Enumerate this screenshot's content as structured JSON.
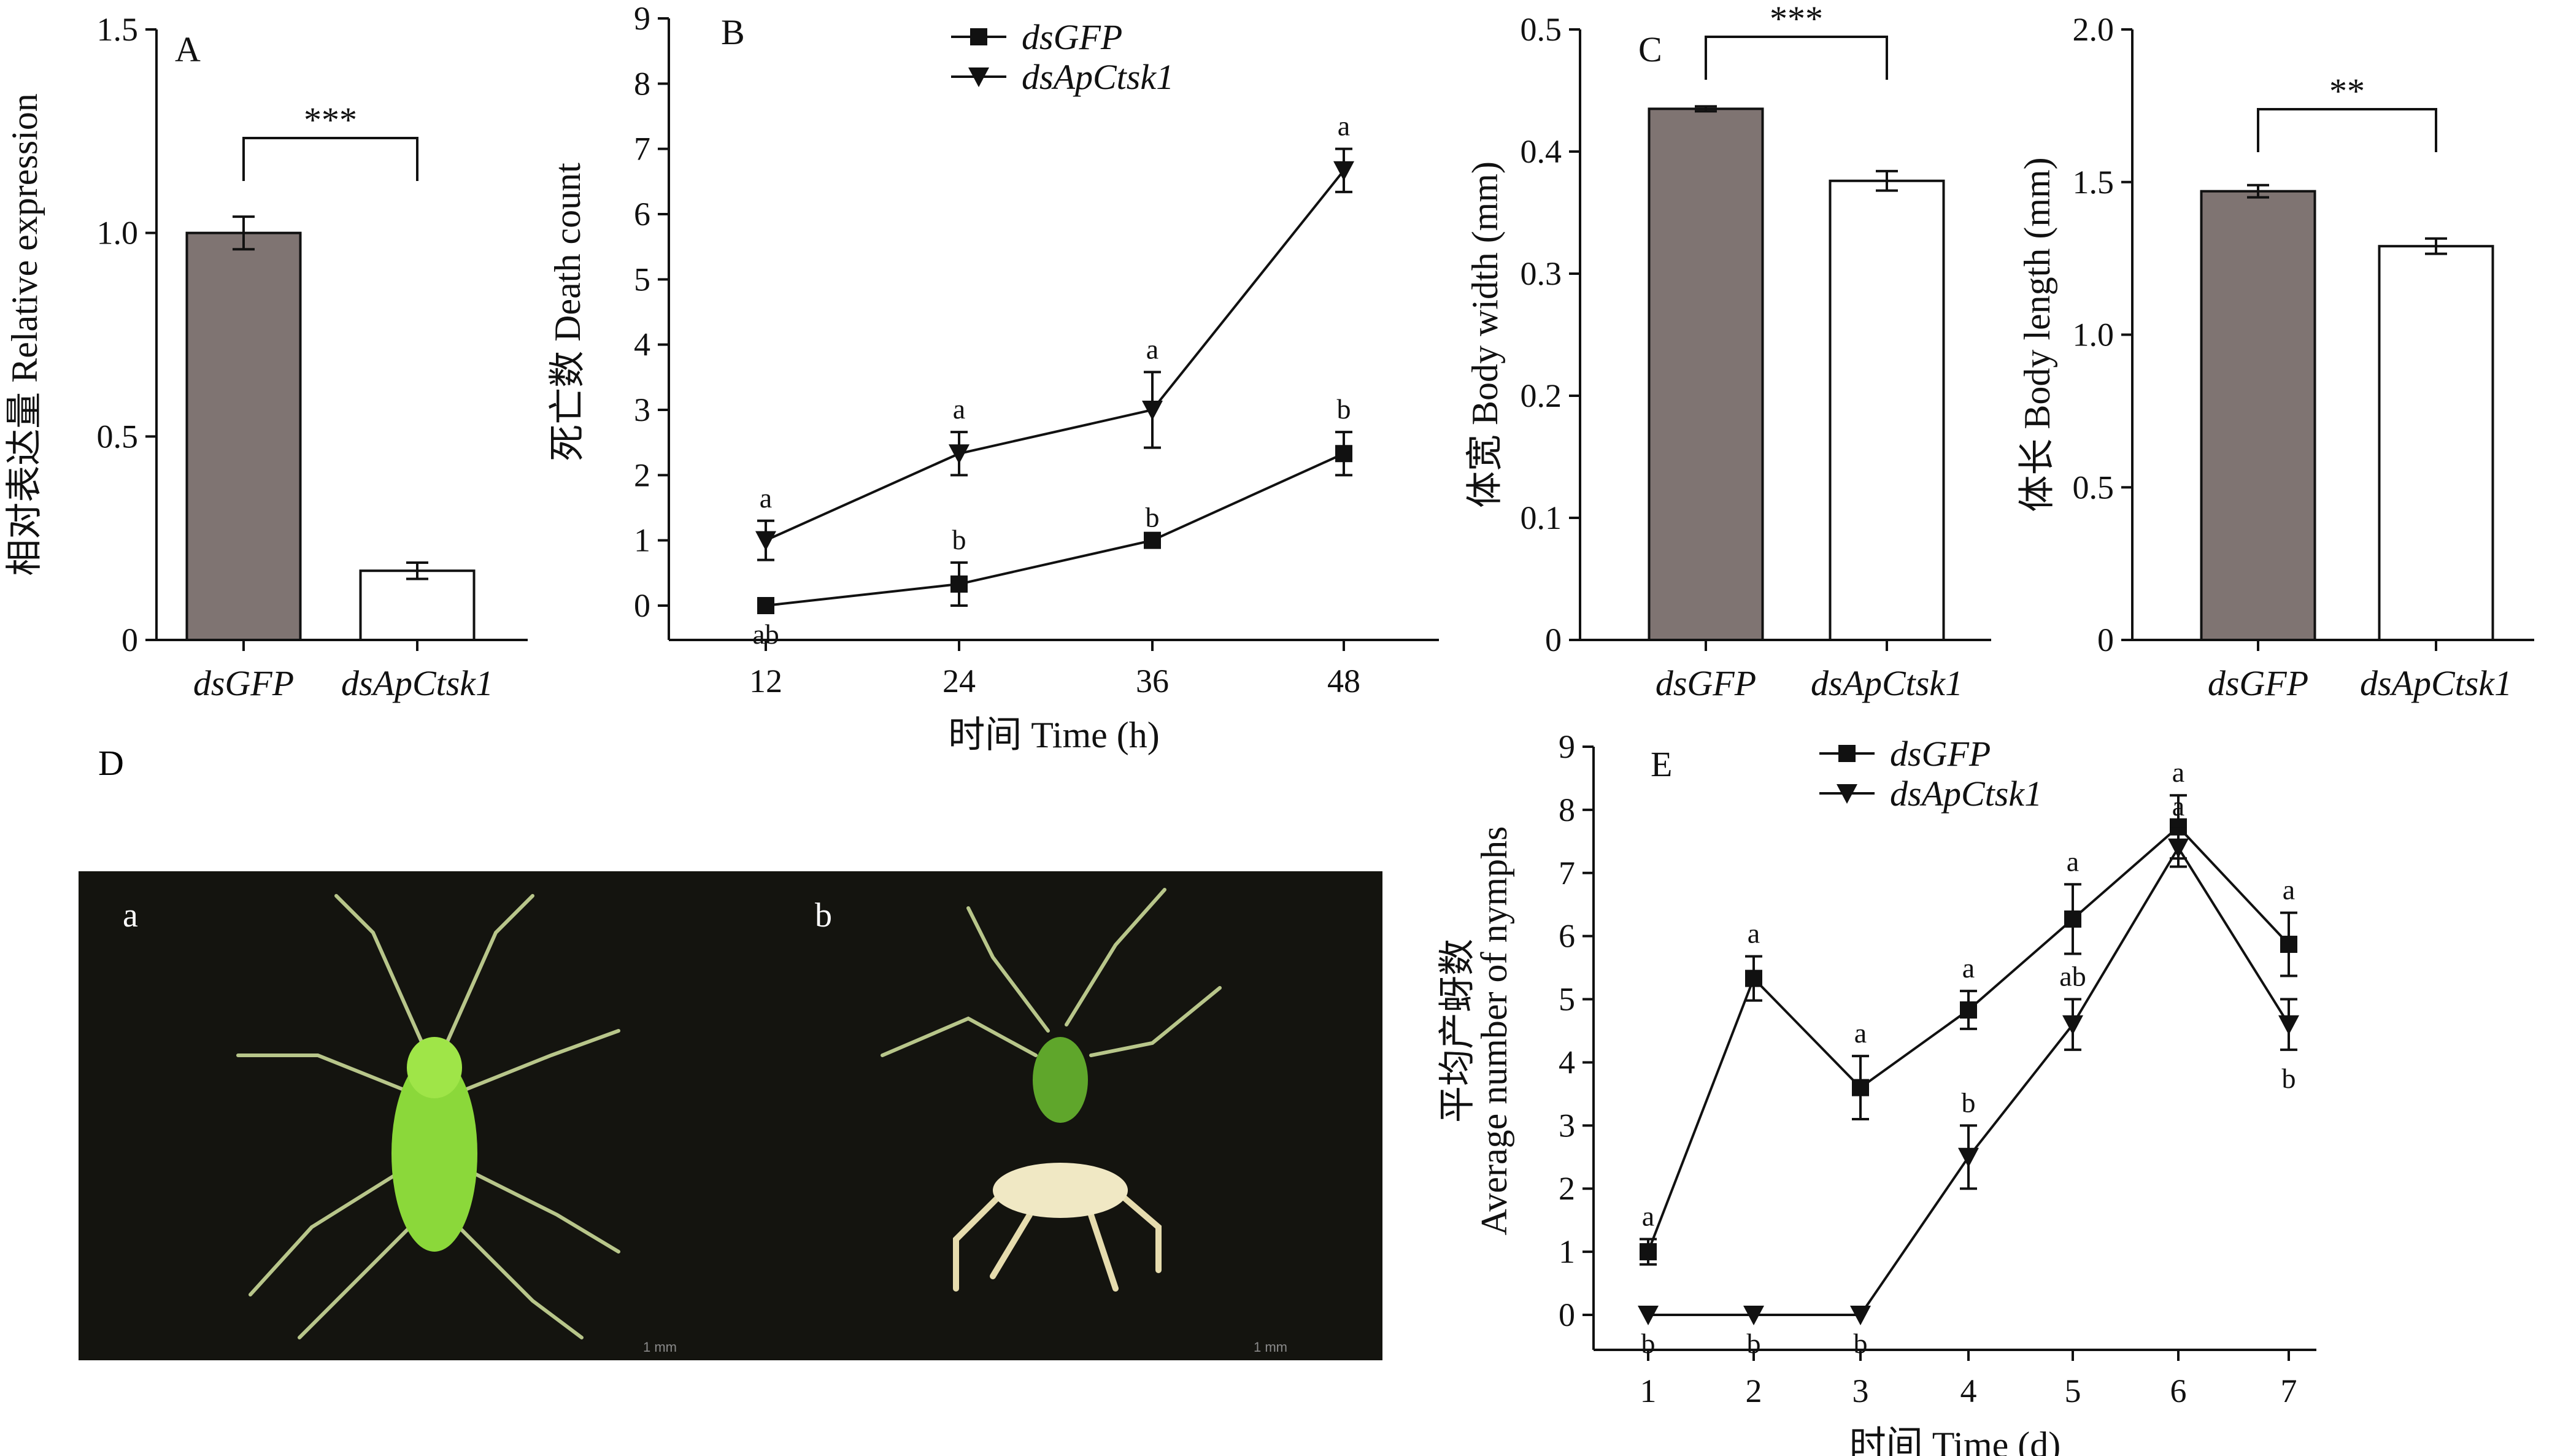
{
  "chart_data": [
    {
      "panel": "A",
      "type": "bar",
      "categories": [
        "dsGFP",
        "dsApCtsk1"
      ],
      "values": [
        1.0,
        0.17
      ],
      "errors": [
        0.04,
        0.02
      ],
      "bar_colors": [
        "#7f7472",
        "#ffffff"
      ],
      "ylabel": "相对表达量 Relative expression",
      "ylim": [
        0,
        1.5
      ],
      "yticks": [
        "0",
        "0.5",
        "1.0",
        "1.5"
      ],
      "yticks_values": [
        0,
        0.5,
        1.0,
        1.5
      ],
      "significance": "***"
    },
    {
      "panel": "B",
      "type": "line",
      "x": [
        12,
        24,
        36,
        48
      ],
      "xticks": [
        "12",
        "24",
        "36",
        "48"
      ],
      "xlabel": "时间 Time (h)",
      "ylabel": "死亡数 Death count",
      "ylim": [
        0,
        9
      ],
      "yticks": [
        "0",
        "1",
        "2",
        "3",
        "4",
        "5",
        "6",
        "7",
        "8",
        "9"
      ],
      "series": [
        {
          "name": "dsGFP",
          "marker": "square",
          "values": [
            0,
            0.33,
            1.0,
            2.33
          ],
          "errors": [
            0,
            0.33,
            0,
            0.33
          ],
          "letters": [
            "ab",
            "b",
            "b",
            "b"
          ]
        },
        {
          "name": "dsApCtsk1",
          "marker": "triangle-down",
          "values": [
            1.0,
            2.33,
            3.0,
            6.67
          ],
          "errors": [
            0.3,
            0.33,
            0.58,
            0.33
          ],
          "letters": [
            "a",
            "a",
            "a",
            "a"
          ]
        }
      ]
    },
    {
      "panel": "C",
      "type": "bar",
      "categories": [
        "dsGFP",
        "dsApCtsk1"
      ],
      "values": [
        0.435,
        0.376
      ],
      "errors": [
        0.002,
        0.008
      ],
      "bar_colors": [
        "#7f7472",
        "#ffffff"
      ],
      "ylabel": "体宽 Body width (mm)",
      "ylim": [
        0,
        0.5
      ],
      "yticks": [
        "0",
        "0.1",
        "0.2",
        "0.3",
        "0.4",
        "0.5"
      ],
      "yticks_values": [
        0,
        0.1,
        0.2,
        0.3,
        0.4,
        0.5
      ],
      "significance": "***"
    },
    {
      "panel": "",
      "type": "bar",
      "categories": [
        "dsGFP",
        "dsApCtsk1"
      ],
      "values": [
        1.47,
        1.29
      ],
      "errors": [
        0.02,
        0.025
      ],
      "bar_colors": [
        "#7f7472",
        "#ffffff"
      ],
      "ylabel": "体长 Body length (mm)",
      "ylim": [
        0,
        2.0
      ],
      "yticks": [
        "0",
        "0.5",
        "1.0",
        "1.5",
        "2.0"
      ],
      "yticks_values": [
        0,
        0.5,
        1.0,
        1.5,
        2.0
      ],
      "significance": "**"
    },
    {
      "panel": "E",
      "type": "line",
      "x": [
        1,
        2,
        3,
        4,
        5,
        6,
        7
      ],
      "xticks": [
        "1",
        "2",
        "3",
        "4",
        "5",
        "6",
        "7"
      ],
      "xlabel": "时间 Time (d)",
      "ylabel_lines": [
        "平均产蚜数",
        "Average number of nymphs"
      ],
      "ylim": [
        0,
        9
      ],
      "yticks": [
        "0",
        "1",
        "2",
        "3",
        "4",
        "5",
        "6",
        "7",
        "8",
        "9"
      ],
      "series": [
        {
          "name": "dsGFP",
          "marker": "square",
          "values": [
            1.0,
            5.33,
            3.6,
            4.83,
            6.27,
            7.73,
            5.87
          ],
          "errors": [
            0.2,
            0.35,
            0.5,
            0.3,
            0.55,
            0.5,
            0.5
          ],
          "letters": [
            "a",
            "a",
            "a",
            "a",
            "a",
            "a",
            "a"
          ]
        },
        {
          "name": "dsApCtsk1",
          "marker": "triangle-down",
          "values": [
            0,
            0,
            0,
            2.5,
            4.6,
            7.4,
            4.6
          ],
          "errors": [
            0,
            0,
            0,
            0.5,
            0.4,
            0.3,
            0.4
          ],
          "letters": [
            "b",
            "b",
            "b",
            "b",
            "ab",
            "a",
            "b"
          ]
        }
      ]
    }
  ],
  "panel_d": {
    "label": "D",
    "photo_a_label": "a",
    "photo_b_label": "b",
    "scale_text": "1 mm"
  }
}
